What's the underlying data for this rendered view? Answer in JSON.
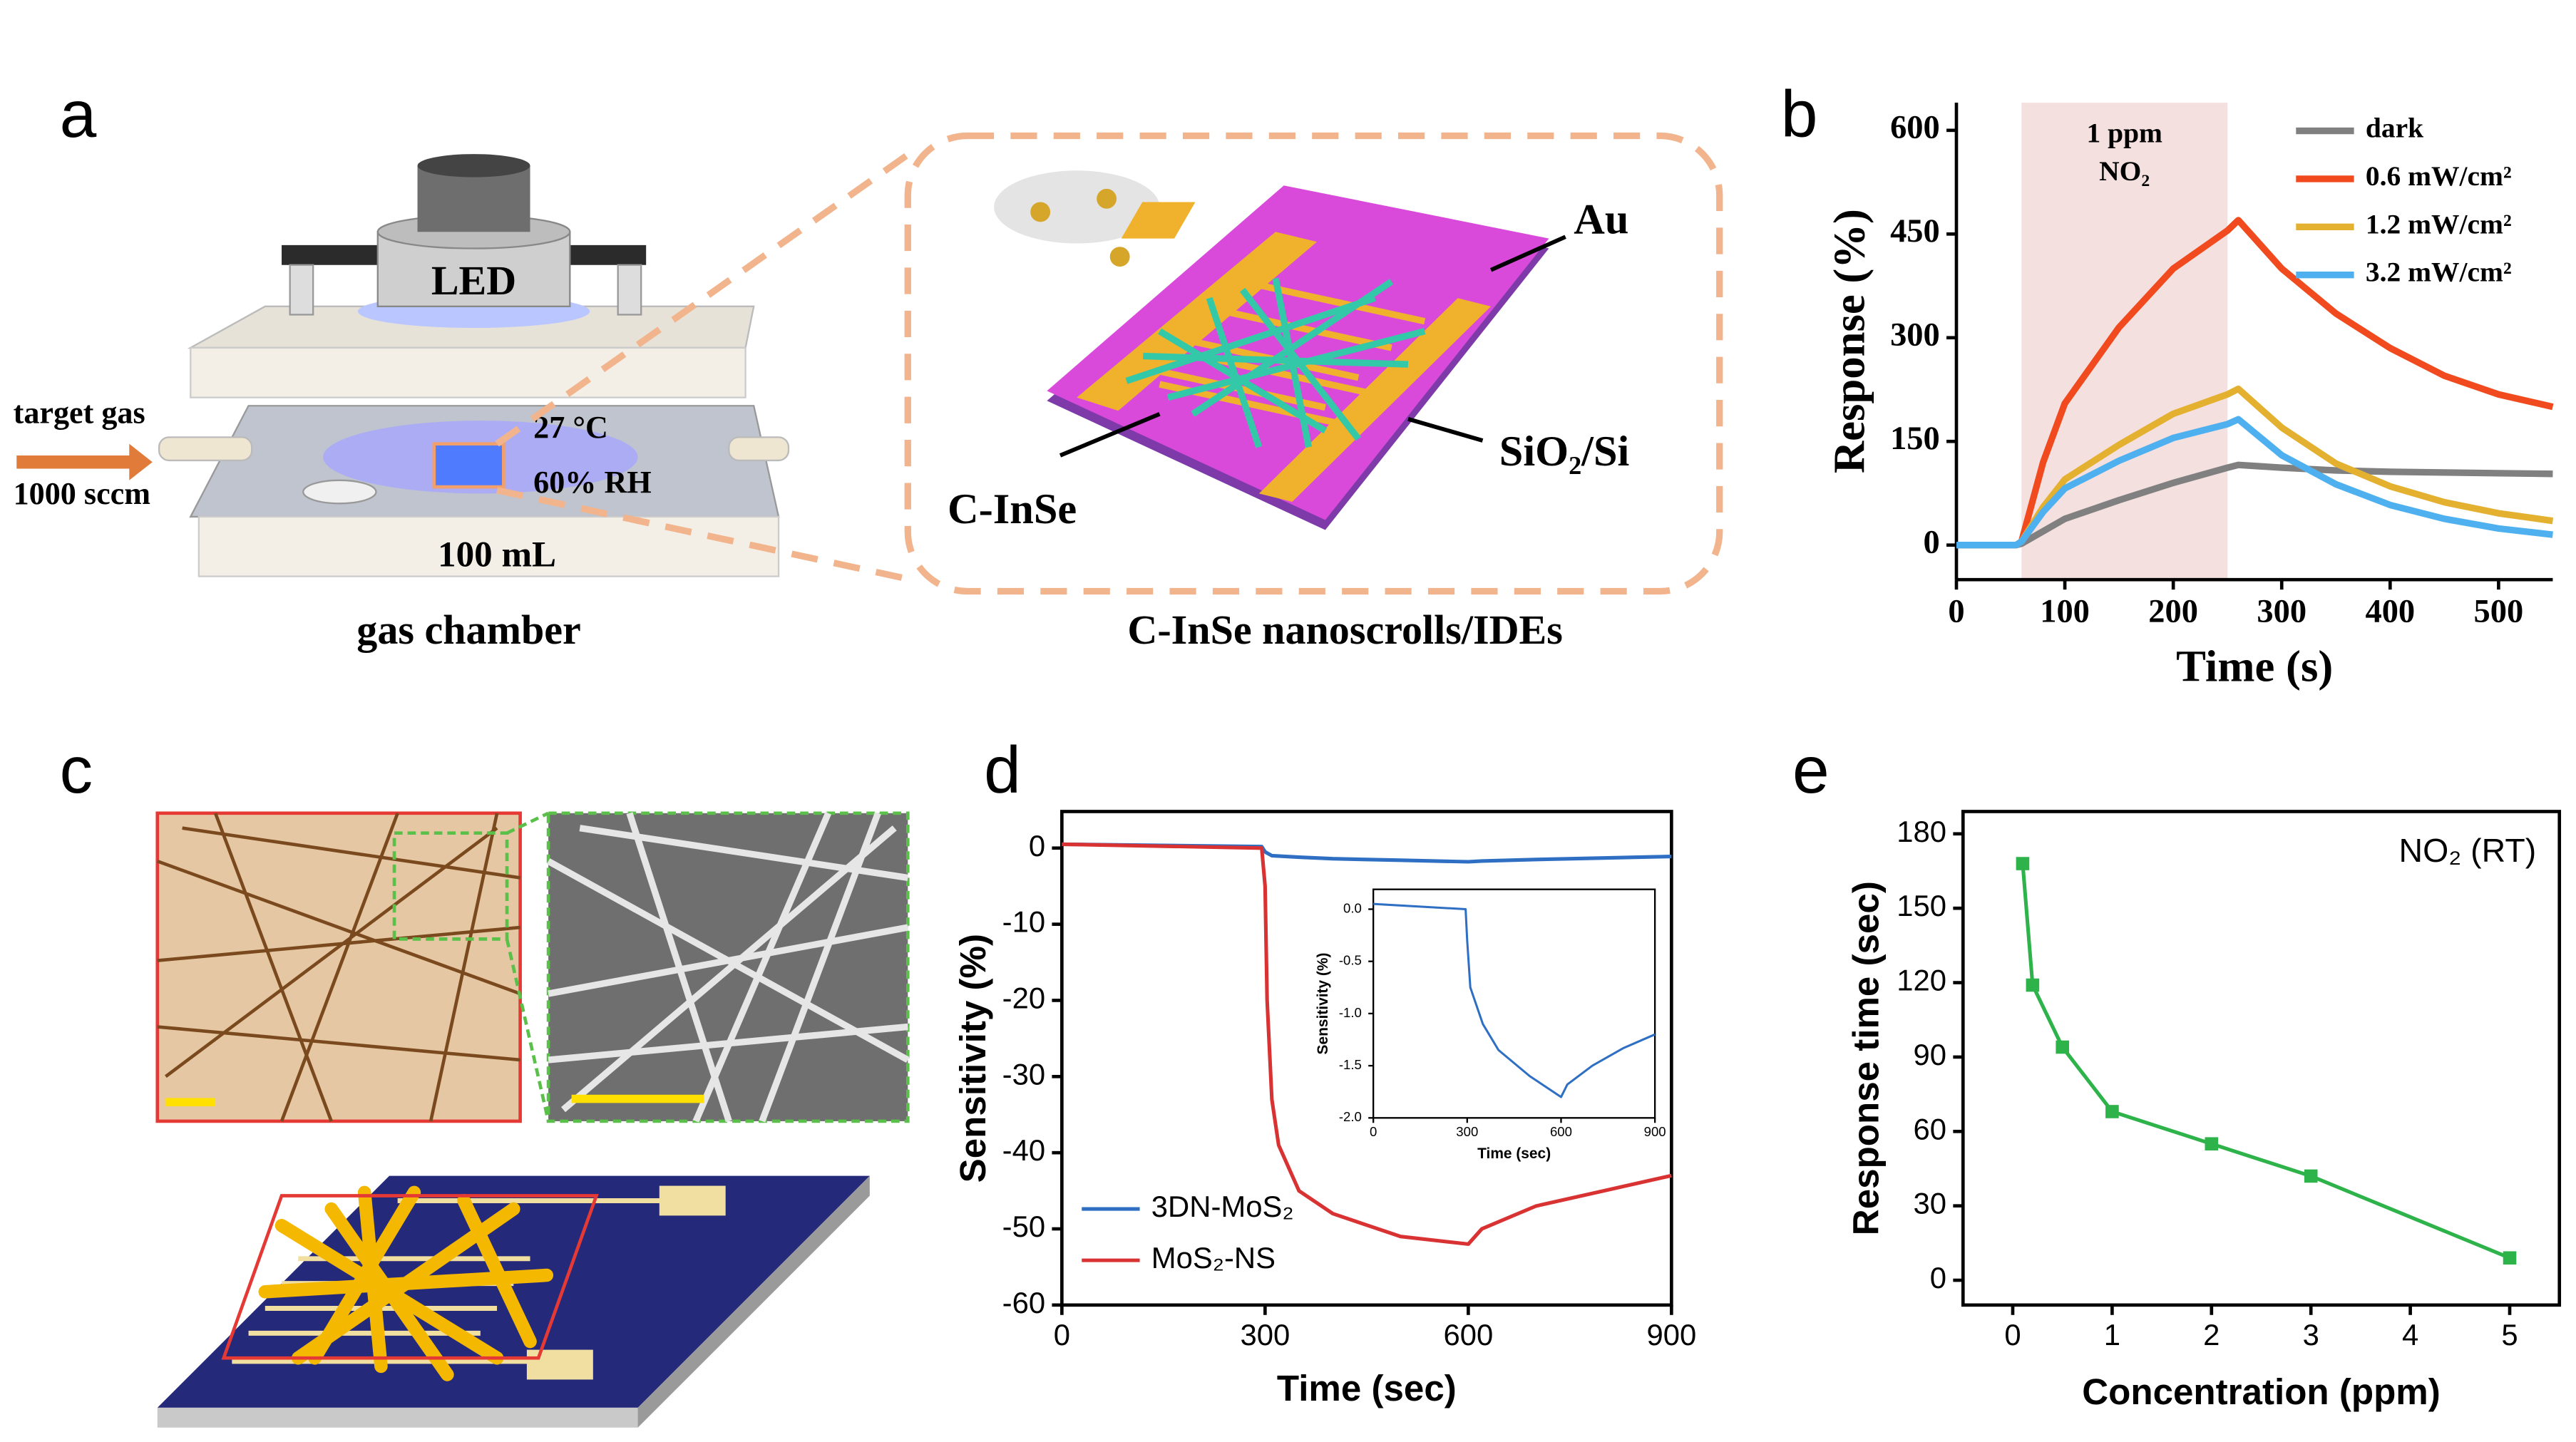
{
  "panel_labels": [
    "a",
    "b",
    "c",
    "d",
    "e"
  ],
  "illustration_a": {
    "led": "LED",
    "gas_in": "target gas",
    "flow": "1000 sccm",
    "temperature": "27 °C",
    "humidity": "60% RH",
    "volume": "100 mL",
    "chamber_caption": "gas chamber",
    "electrode": "Au",
    "substrate": "SiO₂/Si",
    "material": "C-InSe",
    "device_caption": "C-InSe nanoscrolls/IDEs"
  },
  "chart_data": [
    {
      "type": "line",
      "xlabel": "Time (s)",
      "ylabel": "Response (%)",
      "annotation": [
        "1 ppm",
        "NO₂"
      ],
      "shaded_x": [
        60,
        250
      ],
      "x": [
        0,
        55,
        60,
        80,
        100,
        150,
        200,
        250,
        260,
        300,
        350,
        400,
        450,
        500,
        550
      ],
      "series": [
        {
          "name": "dark",
          "color": "#808080",
          "values": [
            0,
            0,
            2,
            20,
            38,
            65,
            90,
            112,
            116,
            112,
            108,
            106,
            105,
            104,
            103
          ]
        },
        {
          "name": "0.6 mW/cm²",
          "color": "#f04a1e",
          "values": [
            0,
            0,
            5,
            120,
            205,
            315,
            400,
            455,
            470,
            400,
            335,
            285,
            245,
            218,
            200
          ]
        },
        {
          "name": "1.2 mW/cm²",
          "color": "#e3b030",
          "values": [
            0,
            0,
            5,
            55,
            95,
            145,
            190,
            218,
            226,
            170,
            118,
            85,
            62,
            46,
            35
          ]
        },
        {
          "name": "3.2 mW/cm²",
          "color": "#4fb0ef",
          "values": [
            0,
            0,
            5,
            48,
            82,
            122,
            155,
            175,
            182,
            130,
            88,
            58,
            38,
            24,
            15
          ]
        }
      ],
      "xlim": [
        0,
        550
      ],
      "xticks": [
        0,
        100,
        200,
        300,
        400,
        500
      ],
      "ylim": [
        -50,
        640
      ],
      "yticks": [
        0,
        150,
        300,
        450,
        600
      ],
      "legend": "top-right",
      "frame": false
    },
    {
      "type": "line",
      "xlabel": "Time (sec)",
      "ylabel": "Sensitivity (%)",
      "series": [
        {
          "name": "3DN-MoS₂",
          "color": "#2e6fc4",
          "x": [
            0,
            295,
            300,
            310,
            350,
            400,
            500,
            600,
            620,
            700,
            800,
            900
          ],
          "values": [
            0.5,
            0.2,
            -0.5,
            -1,
            -1.2,
            -1.4,
            -1.6,
            -1.8,
            -1.7,
            -1.5,
            -1.3,
            -1.1
          ]
        },
        {
          "name": "MoS₂-NS",
          "color": "#d93232",
          "x": [
            0,
            295,
            300,
            303,
            310,
            320,
            350,
            400,
            500,
            600,
            620,
            700,
            800,
            900
          ],
          "values": [
            0.5,
            0,
            -5,
            -20,
            -33,
            -39,
            -45,
            -48,
            -51,
            -52,
            -50,
            -47,
            -45,
            -43
          ]
        }
      ],
      "xlim": [
        0,
        900
      ],
      "xticks": [
        0,
        300,
        600,
        900
      ],
      "ylim": [
        -60,
        4.8
      ],
      "yticks": [
        0,
        -10,
        -20,
        -30,
        -40,
        -50,
        -60
      ],
      "legend": "bottom-left",
      "frame": true,
      "inset": {
        "type": "line",
        "xlabel": "Time (sec)",
        "ylabel": "Sensitivity (%)",
        "series": [
          {
            "color": "#2e6fc4",
            "x": [
              0,
              295,
              300,
              310,
              350,
              400,
              500,
              600,
              620,
              700,
              800,
              900
            ],
            "values": [
              0.05,
              0.0,
              -0.3,
              -0.75,
              -1.1,
              -1.35,
              -1.6,
              -1.8,
              -1.68,
              -1.5,
              -1.33,
              -1.2
            ]
          }
        ],
        "xlim": [
          0,
          900
        ],
        "xticks": [
          0,
          300,
          600,
          900
        ],
        "ylim": [
          -2,
          0.19
        ],
        "yticks": [
          {
            "value": 0,
            "label": "0.0"
          },
          -0.5,
          {
            "value": -1,
            "label": "-1.0"
          },
          -1.5,
          {
            "value": -2,
            "label": "-2.0"
          }
        ],
        "frame": true
      }
    },
    {
      "type": "line",
      "xlabel": "Concentration (ppm)",
      "ylabel": "Response time (sec)",
      "annotation": [
        "NO₂ (RT)"
      ],
      "x": [
        0.1,
        0.2,
        0.5,
        1,
        2,
        3,
        5
      ],
      "series": [
        {
          "color": "#2db34a",
          "marker": "square",
          "values": [
            168,
            119,
            94,
            68,
            55,
            42,
            9
          ]
        }
      ],
      "xlim": [
        -0.5,
        5.5
      ],
      "xticks": [
        0,
        1,
        2,
        3,
        4,
        5
      ],
      "ylim": [
        -10,
        189
      ],
      "yticks": [
        0,
        30,
        60,
        90,
        120,
        150,
        180
      ],
      "frame": true
    }
  ]
}
